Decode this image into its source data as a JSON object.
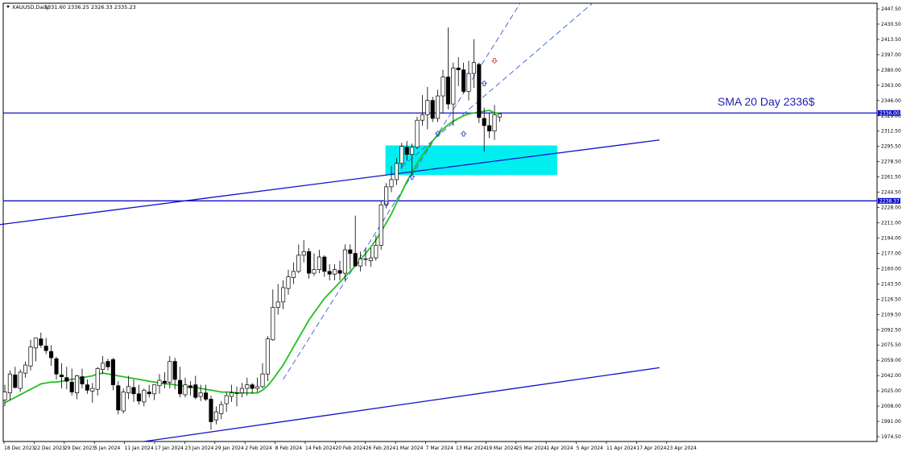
{
  "chart_header": {
    "menu_icon": "triangle-down-icon",
    "symbol": "XAUUSD,Daily",
    "ohlc": "2331.60 2336.25 2326.33 2335.23"
  },
  "annotation": {
    "sma_label": "SMA 20 Day  2336$"
  },
  "colors": {
    "support_resistance": "#1010c8",
    "sma": "#22c022",
    "zone": "#00eef0",
    "channel": "#3a5ad8",
    "candle_up": "#ffffff",
    "candle_down": "#000000",
    "arrow_up": "#1a40d0",
    "arrow_down": "#d03030"
  },
  "chart_data": {
    "type": "candlestick",
    "y_axis_ticks": [
      "2447.50",
      "2430.50",
      "2413.50",
      "2397.00",
      "2380.00",
      "2363.00",
      "2346.00",
      "2329.00",
      "2312.50",
      "2295.50",
      "2278.50",
      "2261.50",
      "2244.50",
      "2228.00",
      "2211.00",
      "2194.00",
      "2177.00",
      "2160.00",
      "2143.50",
      "2126.50",
      "2109.50",
      "2092.50",
      "2075.50",
      "2059.00",
      "2042.00",
      "2025.00",
      "2008.00",
      "1991.00",
      "1974.50"
    ],
    "x_axis_ticks": [
      "18 Dec 2023",
      "22 Dec 2023",
      "29 Dec 2023",
      "5 Jan 2024",
      "11 Jan 2024",
      "17 Jan 2024",
      "23 Jan 2024",
      "29 Jan 2024",
      "2 Feb 2024",
      "8 Feb 2024",
      "14 Feb 2024",
      "20 Feb 2024",
      "26 Feb 2024",
      "1 Mar 2024",
      "7 Mar 2024",
      "13 Mar 2024",
      "19 Mar 2024",
      "25 Mar 2024",
      "1 Apr 2024",
      "5 Apr 2024",
      "11 Apr 2024",
      "17 Apr 2024",
      "23 Apr 2024"
    ],
    "ylim": [
      1971,
      2458
    ],
    "horizontal_levels": [
      {
        "name": "resistance",
        "value": 2336.0,
        "tag": "2336.00"
      },
      {
        "name": "support",
        "value": 2238.37,
        "tag": "2238.37"
      }
    ],
    "candles": [
      {
        "o": 2017,
        "h": 2034,
        "l": 2010,
        "c": 2026
      },
      {
        "o": 2025,
        "h": 2050,
        "l": 2017,
        "c": 2046
      },
      {
        "o": 2045,
        "h": 2054,
        "l": 2030,
        "c": 2031
      },
      {
        "o": 2030,
        "h": 2051,
        "l": 2026,
        "c": 2048
      },
      {
        "o": 2047,
        "h": 2060,
        "l": 2042,
        "c": 2056
      },
      {
        "o": 2055,
        "h": 2084,
        "l": 2050,
        "c": 2076
      },
      {
        "o": 2075,
        "h": 2086,
        "l": 2060,
        "c": 2086
      },
      {
        "o": 2085,
        "h": 2092,
        "l": 2075,
        "c": 2078
      },
      {
        "o": 2077,
        "h": 2086,
        "l": 2068,
        "c": 2072
      },
      {
        "o": 2071,
        "h": 2078,
        "l": 2055,
        "c": 2064
      },
      {
        "o": 2063,
        "h": 2065,
        "l": 2040,
        "c": 2046
      },
      {
        "o": 2045,
        "h": 2058,
        "l": 2030,
        "c": 2043
      },
      {
        "o": 2042,
        "h": 2054,
        "l": 2029,
        "c": 2038
      },
      {
        "o": 2037,
        "h": 2052,
        "l": 2022,
        "c": 2026
      },
      {
        "o": 2025,
        "h": 2045,
        "l": 2018,
        "c": 2044
      },
      {
        "o": 2043,
        "h": 2052,
        "l": 2030,
        "c": 2035
      },
      {
        "o": 2034,
        "h": 2040,
        "l": 2024,
        "c": 2028
      },
      {
        "o": 2027,
        "h": 2036,
        "l": 2014,
        "c": 2030
      },
      {
        "o": 2029,
        "h": 2054,
        "l": 2022,
        "c": 2052
      },
      {
        "o": 2051,
        "h": 2066,
        "l": 2046,
        "c": 2058
      },
      {
        "o": 2060,
        "h": 2063,
        "l": 2050,
        "c": 2054
      },
      {
        "o": 2062,
        "h": 2064,
        "l": 2028,
        "c": 2034
      },
      {
        "o": 2033,
        "h": 2038,
        "l": 2001,
        "c": 2006
      },
      {
        "o": 2005,
        "h": 2030,
        "l": 2002,
        "c": 2026
      },
      {
        "o": 2025,
        "h": 2044,
        "l": 2018,
        "c": 2032
      },
      {
        "o": 2031,
        "h": 2040,
        "l": 2015,
        "c": 2024
      },
      {
        "o": 2024,
        "h": 2034,
        "l": 2012,
        "c": 2016
      },
      {
        "o": 2015,
        "h": 2030,
        "l": 2010,
        "c": 2028
      },
      {
        "o": 2026,
        "h": 2034,
        "l": 2020,
        "c": 2024
      },
      {
        "o": 2024,
        "h": 2034,
        "l": 2017,
        "c": 2034
      },
      {
        "o": 2033,
        "h": 2046,
        "l": 2024,
        "c": 2039
      },
      {
        "o": 2038,
        "h": 2048,
        "l": 2030,
        "c": 2036
      },
      {
        "o": 2037,
        "h": 2066,
        "l": 2030,
        "c": 2060
      },
      {
        "o": 2060,
        "h": 2064,
        "l": 2029,
        "c": 2040
      },
      {
        "o": 2039,
        "h": 2054,
        "l": 2020,
        "c": 2024
      },
      {
        "o": 2023,
        "h": 2042,
        "l": 2020,
        "c": 2034
      },
      {
        "o": 2033,
        "h": 2038,
        "l": 2022,
        "c": 2031
      },
      {
        "o": 2034,
        "h": 2044,
        "l": 2018,
        "c": 2020
      },
      {
        "o": 2021,
        "h": 2034,
        "l": 2016,
        "c": 2025
      },
      {
        "o": 2025,
        "h": 2034,
        "l": 2016,
        "c": 2018
      },
      {
        "o": 2018,
        "h": 2022,
        "l": 1984,
        "c": 1993
      },
      {
        "o": 1995,
        "h": 2010,
        "l": 1990,
        "c": 2004
      },
      {
        "o": 2002,
        "h": 2016,
        "l": 1996,
        "c": 2012
      },
      {
        "o": 2013,
        "h": 2026,
        "l": 2004,
        "c": 2022
      },
      {
        "o": 2021,
        "h": 2034,
        "l": 2015,
        "c": 2025
      },
      {
        "o": 2025,
        "h": 2032,
        "l": 2010,
        "c": 2025
      },
      {
        "o": 2025,
        "h": 2036,
        "l": 2020,
        "c": 2030
      },
      {
        "o": 2030,
        "h": 2042,
        "l": 2022,
        "c": 2034
      },
      {
        "o": 2034,
        "h": 2036,
        "l": 2024,
        "c": 2030
      },
      {
        "o": 2030,
        "h": 2042,
        "l": 2026,
        "c": 2032
      },
      {
        "o": 2032,
        "h": 2058,
        "l": 2030,
        "c": 2046
      },
      {
        "o": 2046,
        "h": 2088,
        "l": 2038,
        "c": 2085
      },
      {
        "o": 2084,
        "h": 2140,
        "l": 2083,
        "c": 2120
      },
      {
        "o": 2120,
        "h": 2146,
        "l": 2112,
        "c": 2126
      },
      {
        "o": 2126,
        "h": 2150,
        "l": 2118,
        "c": 2142
      },
      {
        "o": 2141,
        "h": 2162,
        "l": 2134,
        "c": 2154
      },
      {
        "o": 2153,
        "h": 2170,
        "l": 2146,
        "c": 2160
      },
      {
        "o": 2160,
        "h": 2190,
        "l": 2158,
        "c": 2178
      },
      {
        "o": 2178,
        "h": 2195,
        "l": 2170,
        "c": 2182
      },
      {
        "o": 2182,
        "h": 2186,
        "l": 2152,
        "c": 2158
      },
      {
        "o": 2158,
        "h": 2180,
        "l": 2155,
        "c": 2162
      },
      {
        "o": 2162,
        "h": 2184,
        "l": 2158,
        "c": 2176
      },
      {
        "o": 2176,
        "h": 2178,
        "l": 2154,
        "c": 2160
      },
      {
        "o": 2160,
        "h": 2168,
        "l": 2150,
        "c": 2157
      },
      {
        "o": 2157,
        "h": 2168,
        "l": 2150,
        "c": 2162
      },
      {
        "o": 2161,
        "h": 2172,
        "l": 2150,
        "c": 2158
      },
      {
        "o": 2158,
        "h": 2190,
        "l": 2150,
        "c": 2184
      },
      {
        "o": 2184,
        "h": 2190,
        "l": 2162,
        "c": 2180
      },
      {
        "o": 2180,
        "h": 2222,
        "l": 2166,
        "c": 2166
      },
      {
        "o": 2166,
        "h": 2182,
        "l": 2160,
        "c": 2174
      },
      {
        "o": 2174,
        "h": 2186,
        "l": 2166,
        "c": 2174
      },
      {
        "o": 2172,
        "h": 2186,
        "l": 2165,
        "c": 2175
      },
      {
        "o": 2175,
        "h": 2200,
        "l": 2172,
        "c": 2189
      },
      {
        "o": 2189,
        "h": 2238,
        "l": 2184,
        "c": 2234
      },
      {
        "o": 2234,
        "h": 2258,
        "l": 2230,
        "c": 2254
      },
      {
        "o": 2254,
        "h": 2277,
        "l": 2248,
        "c": 2262
      },
      {
        "o": 2262,
        "h": 2286,
        "l": 2256,
        "c": 2280
      },
      {
        "o": 2280,
        "h": 2303,
        "l": 2274,
        "c": 2299
      },
      {
        "o": 2298,
        "h": 2305,
        "l": 2283,
        "c": 2290
      },
      {
        "o": 2290,
        "h": 2302,
        "l": 2268,
        "c": 2298
      },
      {
        "o": 2298,
        "h": 2332,
        "l": 2296,
        "c": 2328
      },
      {
        "o": 2328,
        "h": 2356,
        "l": 2322,
        "c": 2334
      },
      {
        "o": 2334,
        "h": 2365,
        "l": 2318,
        "c": 2350
      },
      {
        "o": 2350,
        "h": 2354,
        "l": 2326,
        "c": 2330
      },
      {
        "o": 2330,
        "h": 2362,
        "l": 2326,
        "c": 2355
      },
      {
        "o": 2355,
        "h": 2384,
        "l": 2336,
        "c": 2376
      },
      {
        "o": 2376,
        "h": 2431,
        "l": 2340,
        "c": 2346
      },
      {
        "o": 2346,
        "h": 2392,
        "l": 2322,
        "c": 2386
      },
      {
        "o": 2386,
        "h": 2398,
        "l": 2366,
        "c": 2384
      },
      {
        "o": 2384,
        "h": 2392,
        "l": 2358,
        "c": 2360
      },
      {
        "o": 2360,
        "h": 2394,
        "l": 2350,
        "c": 2380
      },
      {
        "o": 2380,
        "h": 2418,
        "l": 2364,
        "c": 2392
      },
      {
        "o": 2390,
        "h": 2392,
        "l": 2325,
        "c": 2331
      },
      {
        "o": 2330,
        "h": 2342,
        "l": 2293,
        "c": 2322
      },
      {
        "o": 2322,
        "h": 2336,
        "l": 2308,
        "c": 2316
      },
      {
        "o": 2316,
        "h": 2345,
        "l": 2306,
        "c": 2334
      },
      {
        "o": 2331.6,
        "h": 2336.25,
        "l": 2326.33,
        "c": 2335.23
      }
    ],
    "sma20": [
      2014,
      2017,
      2020,
      2023,
      2026,
      2029,
      2032,
      2035,
      2036,
      2037,
      2037,
      2038,
      2039,
      2040,
      2041,
      2042,
      2043,
      2044,
      2046,
      2047,
      2046,
      2045,
      2044,
      2043,
      2042,
      2041,
      2040,
      2039,
      2038,
      2037,
      2036,
      2035,
      2035,
      2034,
      2033,
      2032,
      2031,
      2031,
      2030,
      2029,
      2028,
      2027,
      2026,
      2026,
      2026,
      2025,
      2025,
      2025,
      2025,
      2025,
      2028,
      2033,
      2040,
      2048,
      2056,
      2066,
      2076,
      2086,
      2096,
      2106,
      2114,
      2122,
      2130,
      2136,
      2142,
      2148,
      2154,
      2160,
      2166,
      2173,
      2180,
      2187,
      2195,
      2204,
      2214,
      2224,
      2236,
      2248,
      2260,
      2270,
      2280,
      2289,
      2297,
      2305,
      2312,
      2318,
      2323,
      2327,
      2330,
      2333,
      2335,
      2336,
      2337,
      2338,
      2339,
      2336,
      2336
    ],
    "zone": {
      "from_index": 74,
      "to_index": 107,
      "low": 2267,
      "high": 2300
    },
    "trend_lines": [
      {
        "name": "upper-rising-line",
        "from": {
          "index": -1,
          "value": 2212
        },
        "to": {
          "index": 127,
          "value": 2306
        }
      },
      {
        "name": "lower-rising-line",
        "from": {
          "index": 27,
          "value": 1971
        },
        "to": {
          "index": 127,
          "value": 2053
        }
      },
      {
        "name": "channel-dashed-1",
        "from": {
          "index": 54,
          "value": 2040
        },
        "to": {
          "index": 100,
          "value": 2458
        }
      },
      {
        "name": "channel-dashed-2",
        "from": {
          "index": 77,
          "value": 2276
        },
        "to": {
          "index": 114,
          "value": 2458
        }
      }
    ],
    "signal_arrows": [
      {
        "index": 74,
        "value": 2236,
        "dir": "up"
      },
      {
        "index": 79,
        "value": 2265,
        "dir": "up"
      },
      {
        "index": 84,
        "value": 2313,
        "dir": "up"
      },
      {
        "index": 89,
        "value": 2313,
        "dir": "up"
      },
      {
        "index": 93,
        "value": 2369,
        "dir": "up"
      },
      {
        "index": 95,
        "value": 2394,
        "dir": "down"
      }
    ]
  }
}
